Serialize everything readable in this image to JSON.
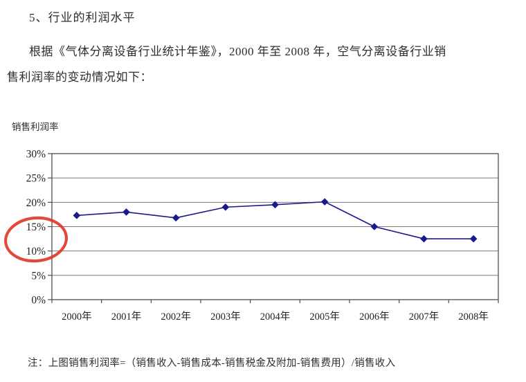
{
  "page": {
    "heading": "5、行业的利润水平",
    "paragraph_line1": "根据《气体分离设备行业统计年鉴》，2000 年至 2008 年，空气分离设备行业销",
    "paragraph_line2": "售利润率的变动情况如下：",
    "chart_label": "销售利润率",
    "note": "注：上图销售利润率=（销售收入-销售成本-销售税金及附加-销售费用）/销售收入"
  },
  "colors": {
    "line": "#1a1a8c",
    "marker": "#1a1a8c",
    "annotation_red": "#e03427",
    "gridline": "#7a7a7a",
    "axis_frame": "#4d4d4d",
    "tick": "#4d4d4d",
    "label_text": "#1f1f1f"
  },
  "chart_data": {
    "type": "line",
    "title": "销售利润率",
    "categories": [
      "2000年",
      "2001年",
      "2002年",
      "2003年",
      "2004年",
      "2005年",
      "2006年",
      "2007年",
      "2008年"
    ],
    "series": [
      {
        "name": "销售利润率",
        "values": [
          17.3,
          18.0,
          16.8,
          19.0,
          19.5,
          20.1,
          15.0,
          12.5,
          12.5
        ]
      }
    ],
    "xlabel": "",
    "ylabel": "销售利润率",
    "ylim": [
      0,
      30
    ],
    "ytick_step": 5,
    "ytick_labels": [
      "30%",
      "25%",
      "20%",
      "15%",
      "10%",
      "5%",
      "0%"
    ],
    "grid": true,
    "legend": "none",
    "marker": "diamond",
    "annotation": "hand-drawn red ellipse circling the 15% and 10% y-axis labels"
  }
}
